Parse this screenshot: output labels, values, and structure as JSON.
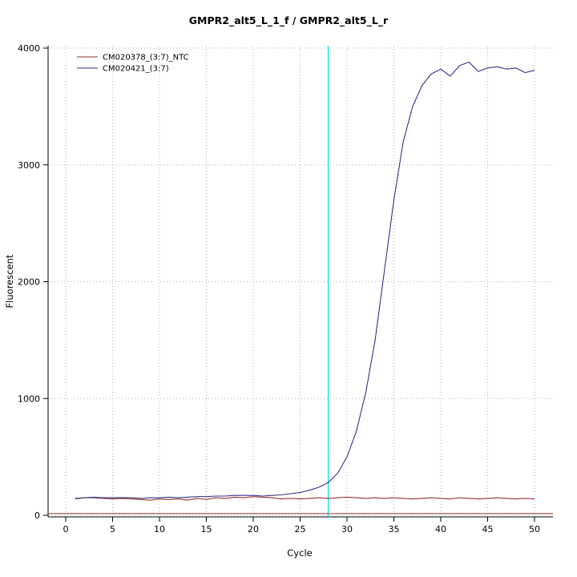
{
  "chart_data": {
    "type": "line",
    "title": "GMPR2_alt5_L_1_f / GMPR2_alt5_L_r",
    "xlabel": "Cycle",
    "ylabel": "Fluorescent",
    "xlim": [
      0,
      50
    ],
    "ylim": [
      0,
      4000
    ],
    "xticks": [
      0,
      5,
      10,
      15,
      20,
      25,
      30,
      35,
      40,
      45,
      50
    ],
    "yticks": [
      0,
      1000,
      2000,
      3000,
      4000
    ],
    "grid": "dotted",
    "grid_color": "#b3b3b3",
    "legend_position": "top-left",
    "x": [
      1,
      2,
      3,
      4,
      5,
      6,
      7,
      8,
      9,
      10,
      11,
      12,
      13,
      14,
      15,
      16,
      17,
      18,
      19,
      20,
      21,
      22,
      23,
      24,
      25,
      26,
      27,
      28,
      29,
      30,
      31,
      32,
      33,
      34,
      35,
      36,
      37,
      38,
      39,
      40,
      41,
      42,
      43,
      44,
      45,
      46,
      47,
      48,
      49,
      50
    ],
    "series": [
      {
        "name": "CM020378_(3:7)_NTC",
        "color": "#993333",
        "values": [
          140,
          150,
          150,
          145,
          140,
          145,
          140,
          135,
          130,
          140,
          135,
          140,
          130,
          145,
          135,
          150,
          145,
          155,
          150,
          160,
          155,
          150,
          140,
          145,
          140,
          145,
          150,
          145,
          150,
          155,
          150,
          145,
          150,
          145,
          150,
          145,
          140,
          145,
          150,
          145,
          140,
          150,
          145,
          140,
          145,
          150,
          145,
          140,
          145,
          140
        ]
      },
      {
        "name": "CM020421_(3:7)",
        "color": "#333388",
        "values": [
          145,
          150,
          155,
          150,
          150,
          150,
          150,
          145,
          150,
          150,
          155,
          150,
          155,
          160,
          160,
          165,
          165,
          170,
          170,
          170,
          165,
          170,
          175,
          185,
          195,
          215,
          240,
          280,
          360,
          500,
          720,
          1050,
          1500,
          2100,
          2700,
          3200,
          3500,
          3680,
          3780,
          3820,
          3760,
          3850,
          3880,
          3800,
          3830,
          3840,
          3820,
          3830,
          3790,
          3810
        ]
      }
    ],
    "ct_line": {
      "x": 28,
      "color": "#00e5e5"
    },
    "threshold_line": {
      "y": 15,
      "color": "#993333"
    }
  }
}
